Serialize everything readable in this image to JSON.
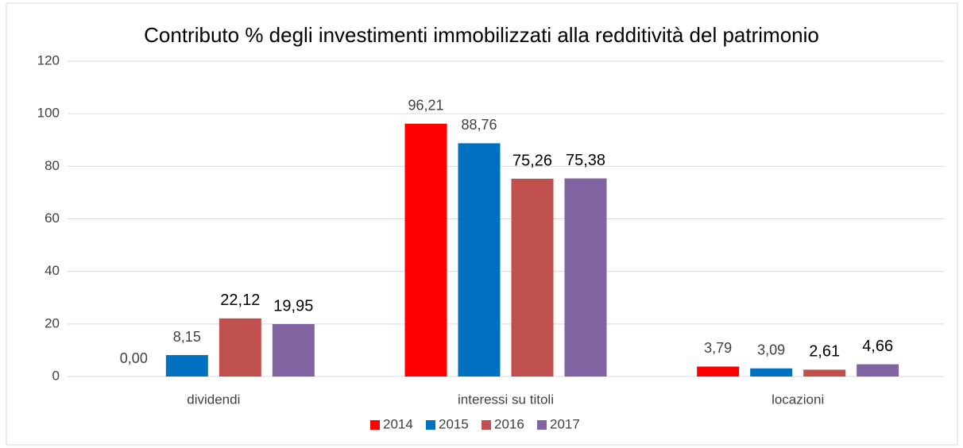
{
  "chart_data": {
    "type": "bar",
    "title": "Contributo % degli investimenti immobilizzati alla redditività del patrimonio",
    "categories": [
      "dividendi",
      "interessi su titoli",
      "locazioni"
    ],
    "series": [
      {
        "name": "2014",
        "color": "#ff0000",
        "values": [
          0.0,
          96.21,
          3.79
        ],
        "value_labels": [
          "0,00",
          "96,21",
          "3,79"
        ]
      },
      {
        "name": "2015",
        "color": "#0070c0",
        "values": [
          8.15,
          88.76,
          3.09
        ],
        "value_labels": [
          "8,15",
          "88,76",
          "3,09"
        ]
      },
      {
        "name": "2016",
        "color": "#c0504d",
        "values": [
          22.12,
          75.26,
          2.61
        ],
        "value_labels": [
          "22,12",
          "75,26",
          "2,61"
        ]
      },
      {
        "name": "2017",
        "color": "#8064a2",
        "values": [
          19.95,
          75.38,
          4.66
        ],
        "value_labels": [
          "19,95",
          "75,38",
          "4,66"
        ]
      }
    ],
    "ylim": [
      0,
      120
    ],
    "yticks": [
      0,
      20,
      40,
      60,
      80,
      100,
      120
    ],
    "grid": true,
    "legend": "bottom"
  }
}
